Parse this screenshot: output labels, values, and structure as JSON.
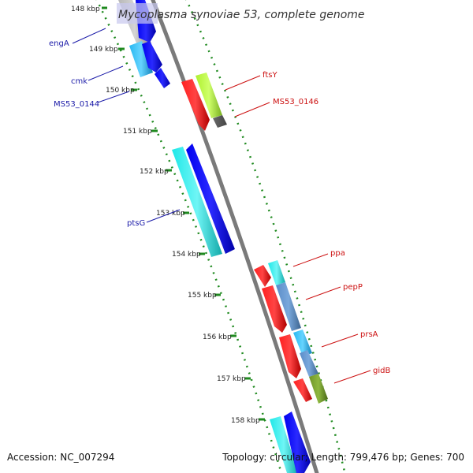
{
  "title": "Mycoplasma synoviae 53, complete genome",
  "accession": "Accession: NC_007294",
  "topology": "Topology: circular; Length: 799,476 bp; Genes: 700",
  "tick_labels": [
    "148 kbp",
    "149 kbp",
    "150 kbp",
    "151 kbp",
    "152 kbp",
    "153 kbp",
    "154 kbp",
    "155 kbp",
    "156 kbp",
    "157 kbp",
    "158 kbp"
  ],
  "left_genes": [
    "engA",
    "cmk",
    "MS53_0144",
    "ptsG"
  ],
  "right_genes": [
    "ftsY",
    "MS53_0146",
    "ppa",
    "pepP",
    "prsA",
    "gidB"
  ],
  "colors": {
    "backbone": "#7a7a7a",
    "left_label": "#1a1aa8",
    "right_label": "#cc1010",
    "tick": "#1f8a1f"
  }
}
